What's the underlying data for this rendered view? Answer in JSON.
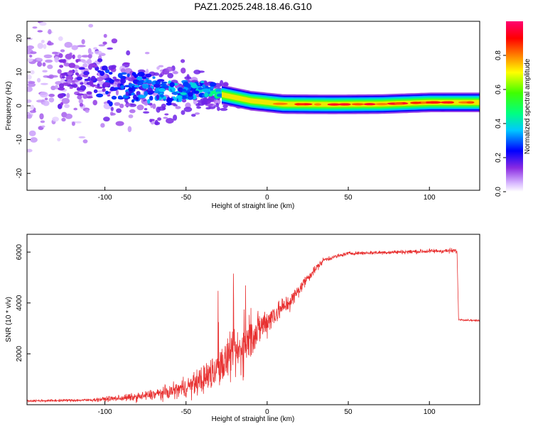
{
  "title": "PAZ1.2025.248.18.46.G10",
  "chart_data": [
    {
      "type": "heatmap",
      "name": "spectrogram",
      "xlabel": "Height of straight line (km)",
      "ylabel": "Frequency (Hz)",
      "xlim": [
        -148,
        131
      ],
      "ylim": [
        -25,
        25
      ],
      "xticks": [
        -100,
        -50,
        0,
        50,
        100
      ],
      "xtick_labels": [
        "-100",
        "-50",
        "0",
        "50",
        "100"
      ],
      "yticks": [
        20,
        10,
        0,
        -10,
        -20
      ],
      "ytick_labels": [
        "20",
        "10",
        "0",
        "-10",
        "-20"
      ],
      "ridge": [
        {
          "x": -120,
          "f": 8,
          "spread": 12,
          "amp": 0.18
        },
        {
          "x": -100,
          "f": 7,
          "spread": 8,
          "amp": 0.28
        },
        {
          "x": -80,
          "f": 5,
          "spread": 6,
          "amp": 0.35
        },
        {
          "x": -60,
          "f": 4,
          "spread": 5,
          "amp": 0.4
        },
        {
          "x": -40,
          "f": 4.5,
          "spread": 4,
          "amp": 0.42
        },
        {
          "x": -25,
          "f": 3,
          "spread": 2,
          "amp": 0.55
        },
        {
          "x": -10,
          "f": 1.5,
          "spread": 1,
          "amp": 0.7
        },
        {
          "x": 10,
          "f": 0.5,
          "spread": 0.8,
          "amp": 0.85
        },
        {
          "x": 40,
          "f": 0.4,
          "spread": 0.8,
          "amp": 0.88
        },
        {
          "x": 70,
          "f": 0.5,
          "spread": 0.8,
          "amp": 0.95
        },
        {
          "x": 100,
          "f": 1,
          "spread": 0.8,
          "amp": 0.9
        },
        {
          "x": 131,
          "f": 1,
          "spread": 0.8,
          "amp": 0.85
        }
      ],
      "colorbar": {
        "label": "Normalized spectral amplitude",
        "range": [
          0,
          1
        ],
        "ticks": [
          0.0,
          0.2,
          0.4,
          0.6,
          0.8
        ],
        "tick_labels": [
          "0.0",
          "0.2",
          "0.4",
          "0.6",
          "0.8"
        ]
      }
    },
    {
      "type": "line",
      "name": "snr",
      "xlabel": "Height of straight line (km)",
      "ylabel": "SNR (10 * v/v)",
      "xlim": [
        -148,
        131
      ],
      "ylim": [
        0,
        6700
      ],
      "xticks": [
        -100,
        -50,
        0,
        50,
        100
      ],
      "xtick_labels": [
        "-100",
        "-50",
        "0",
        "50",
        "100"
      ],
      "yticks": [
        2000,
        4000,
        6000
      ],
      "ytick_labels": [
        "2000",
        "4000",
        "6000"
      ],
      "color": "#e83030",
      "envelope": [
        {
          "x": -148,
          "mean": 150,
          "noise": 60
        },
        {
          "x": -110,
          "mean": 180,
          "noise": 80
        },
        {
          "x": -80,
          "mean": 300,
          "noise": 250
        },
        {
          "x": -60,
          "mean": 500,
          "noise": 400
        },
        {
          "x": -45,
          "mean": 800,
          "noise": 700
        },
        {
          "x": -35,
          "mean": 1200,
          "noise": 1000
        },
        {
          "x": -25,
          "mean": 1700,
          "noise": 1300
        },
        {
          "x": -15,
          "mean": 2200,
          "noise": 1500
        },
        {
          "x": -5,
          "mean": 3000,
          "noise": 1000
        },
        {
          "x": 5,
          "mean": 3600,
          "noise": 700
        },
        {
          "x": 15,
          "mean": 4100,
          "noise": 500
        },
        {
          "x": 25,
          "mean": 5000,
          "noise": 300
        },
        {
          "x": 35,
          "mean": 5700,
          "noise": 150
        },
        {
          "x": 50,
          "mean": 5950,
          "noise": 100
        },
        {
          "x": 80,
          "mean": 6000,
          "noise": 120
        },
        {
          "x": 110,
          "mean": 6050,
          "noise": 140
        },
        {
          "x": 117,
          "mean": 6050,
          "noise": 140
        },
        {
          "x": 118,
          "mean": 3350,
          "noise": 50
        },
        {
          "x": 131,
          "mean": 3300,
          "noise": 50
        }
      ]
    }
  ]
}
